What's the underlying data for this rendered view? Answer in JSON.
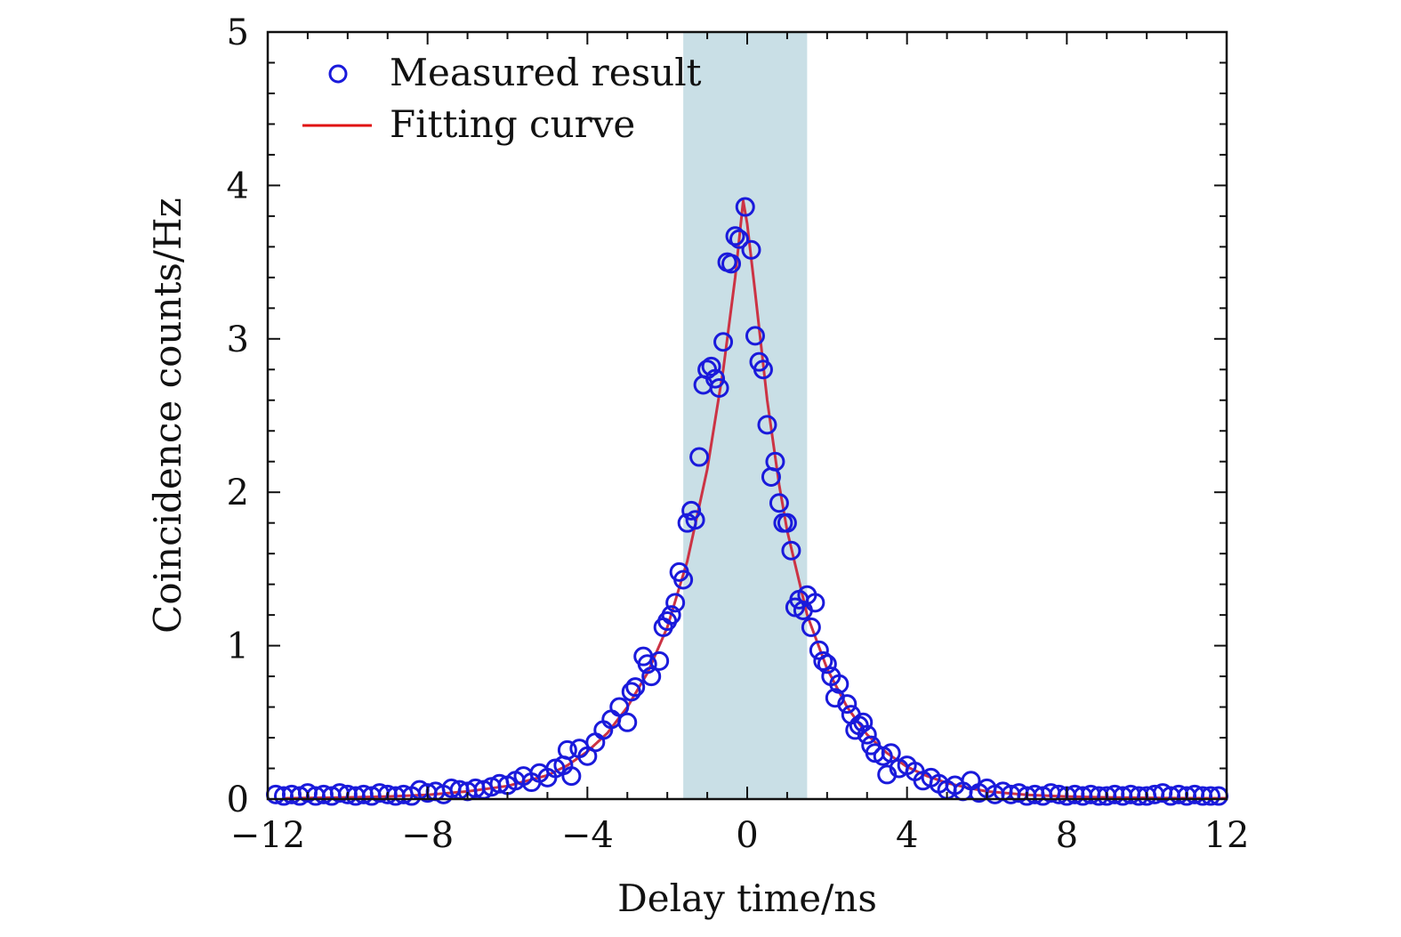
{
  "chart_data": {
    "type": "scatter",
    "xlabel": "Delay time/ns",
    "ylabel": "Coincidence counts/Hz",
    "xlim": [
      -12,
      12
    ],
    "ylim": [
      0,
      5
    ],
    "x_ticks": [
      -12,
      -8,
      -4,
      0,
      4,
      8,
      12
    ],
    "x_tick_labels": [
      "−12",
      "−8",
      "−4",
      "0",
      "4",
      "8",
      "12"
    ],
    "y_ticks": [
      0,
      1,
      2,
      3,
      4,
      5
    ],
    "y_tick_labels": [
      "0",
      "1",
      "2",
      "3",
      "4",
      "5"
    ],
    "grid": false,
    "legend_position": "top-left",
    "highlight_band": {
      "x": [
        -1.6,
        1.5
      ],
      "color": "#c9dfe6"
    },
    "colors": {
      "measured": "#1a1adb",
      "fit": "#cc3344",
      "fit_legend": "#e01010"
    },
    "series": [
      {
        "name": "Measured result",
        "kind": "scatter",
        "points": [
          [
            -11.8,
            0.03
          ],
          [
            -11.6,
            0.02
          ],
          [
            -11.4,
            0.03
          ],
          [
            -11.2,
            0.02
          ],
          [
            -11.0,
            0.04
          ],
          [
            -10.8,
            0.02
          ],
          [
            -10.6,
            0.03
          ],
          [
            -10.4,
            0.02
          ],
          [
            -10.2,
            0.04
          ],
          [
            -10.0,
            0.03
          ],
          [
            -9.8,
            0.02
          ],
          [
            -9.6,
            0.03
          ],
          [
            -9.4,
            0.02
          ],
          [
            -9.2,
            0.04
          ],
          [
            -9.0,
            0.03
          ],
          [
            -8.8,
            0.02
          ],
          [
            -8.6,
            0.03
          ],
          [
            -8.4,
            0.02
          ],
          [
            -8.2,
            0.06
          ],
          [
            -8.0,
            0.04
          ],
          [
            -7.8,
            0.05
          ],
          [
            -7.6,
            0.03
          ],
          [
            -7.4,
            0.07
          ],
          [
            -7.2,
            0.06
          ],
          [
            -7.0,
            0.05
          ],
          [
            -6.8,
            0.07
          ],
          [
            -6.6,
            0.06
          ],
          [
            -6.4,
            0.08
          ],
          [
            -6.2,
            0.1
          ],
          [
            -6.0,
            0.09
          ],
          [
            -5.8,
            0.12
          ],
          [
            -5.6,
            0.15
          ],
          [
            -5.4,
            0.11
          ],
          [
            -5.2,
            0.17
          ],
          [
            -5.0,
            0.14
          ],
          [
            -4.8,
            0.2
          ],
          [
            -4.6,
            0.22
          ],
          [
            -4.5,
            0.32
          ],
          [
            -4.4,
            0.15
          ],
          [
            -4.2,
            0.33
          ],
          [
            -4.0,
            0.28
          ],
          [
            -3.8,
            0.37
          ],
          [
            -3.6,
            0.45
          ],
          [
            -3.4,
            0.52
          ],
          [
            -3.2,
            0.6
          ],
          [
            -3.0,
            0.5
          ],
          [
            -2.9,
            0.7
          ],
          [
            -2.8,
            0.73
          ],
          [
            -2.6,
            0.93
          ],
          [
            -2.5,
            0.88
          ],
          [
            -2.4,
            0.8
          ],
          [
            -2.2,
            0.9
          ],
          [
            -2.1,
            1.12
          ],
          [
            -2.0,
            1.16
          ],
          [
            -1.9,
            1.2
          ],
          [
            -1.8,
            1.28
          ],
          [
            -1.7,
            1.48
          ],
          [
            -1.6,
            1.43
          ],
          [
            -1.5,
            1.8
          ],
          [
            -1.4,
            1.88
          ],
          [
            -1.3,
            1.82
          ],
          [
            -1.2,
            2.23
          ],
          [
            -1.1,
            2.7
          ],
          [
            -1.0,
            2.8
          ],
          [
            -0.9,
            2.82
          ],
          [
            -0.8,
            2.74
          ],
          [
            -0.7,
            2.68
          ],
          [
            -0.6,
            2.98
          ],
          [
            -0.5,
            3.5
          ],
          [
            -0.4,
            3.49
          ],
          [
            -0.3,
            3.67
          ],
          [
            -0.2,
            3.65
          ],
          [
            -0.05,
            3.86
          ],
          [
            0.1,
            3.58
          ],
          [
            0.2,
            3.02
          ],
          [
            0.3,
            2.85
          ],
          [
            0.4,
            2.8
          ],
          [
            0.5,
            2.44
          ],
          [
            0.6,
            2.1
          ],
          [
            0.7,
            2.2
          ],
          [
            0.8,
            1.93
          ],
          [
            0.9,
            1.8
          ],
          [
            1.0,
            1.8
          ],
          [
            1.1,
            1.62
          ],
          [
            1.2,
            1.25
          ],
          [
            1.3,
            1.3
          ],
          [
            1.4,
            1.23
          ],
          [
            1.5,
            1.33
          ],
          [
            1.6,
            1.12
          ],
          [
            1.7,
            1.28
          ],
          [
            1.8,
            0.97
          ],
          [
            1.9,
            0.9
          ],
          [
            2.0,
            0.88
          ],
          [
            2.1,
            0.8
          ],
          [
            2.2,
            0.66
          ],
          [
            2.3,
            0.75
          ],
          [
            2.5,
            0.62
          ],
          [
            2.6,
            0.55
          ],
          [
            2.7,
            0.45
          ],
          [
            2.8,
            0.48
          ],
          [
            2.9,
            0.5
          ],
          [
            3.0,
            0.42
          ],
          [
            3.1,
            0.35
          ],
          [
            3.2,
            0.3
          ],
          [
            3.4,
            0.28
          ],
          [
            3.5,
            0.16
          ],
          [
            3.6,
            0.3
          ],
          [
            3.8,
            0.2
          ],
          [
            4.0,
            0.22
          ],
          [
            4.2,
            0.18
          ],
          [
            4.4,
            0.12
          ],
          [
            4.6,
            0.14
          ],
          [
            4.8,
            0.1
          ],
          [
            5.0,
            0.06
          ],
          [
            5.2,
            0.09
          ],
          [
            5.4,
            0.05
          ],
          [
            5.6,
            0.12
          ],
          [
            5.8,
            0.04
          ],
          [
            6.0,
            0.07
          ],
          [
            6.2,
            0.03
          ],
          [
            6.4,
            0.05
          ],
          [
            6.6,
            0.03
          ],
          [
            6.8,
            0.04
          ],
          [
            7.0,
            0.02
          ],
          [
            7.2,
            0.03
          ],
          [
            7.4,
            0.02
          ],
          [
            7.6,
            0.04
          ],
          [
            7.8,
            0.03
          ],
          [
            8.0,
            0.02
          ],
          [
            8.2,
            0.03
          ],
          [
            8.4,
            0.02
          ],
          [
            8.6,
            0.03
          ],
          [
            8.8,
            0.02
          ],
          [
            9.0,
            0.02
          ],
          [
            9.2,
            0.03
          ],
          [
            9.4,
            0.02
          ],
          [
            9.6,
            0.03
          ],
          [
            9.8,
            0.02
          ],
          [
            10.0,
            0.02
          ],
          [
            10.2,
            0.03
          ],
          [
            10.4,
            0.04
          ],
          [
            10.6,
            0.02
          ],
          [
            10.8,
            0.03
          ],
          [
            11.0,
            0.02
          ],
          [
            11.2,
            0.03
          ],
          [
            11.4,
            0.02
          ],
          [
            11.6,
            0.02
          ],
          [
            11.8,
            0.02
          ]
        ]
      },
      {
        "name": "Fitting curve",
        "kind": "line",
        "points": [
          [
            -11.6,
            0.005
          ],
          [
            -11.0,
            0.007
          ],
          [
            -10.0,
            0.011
          ],
          [
            -9.0,
            0.017
          ],
          [
            -8.0,
            0.027
          ],
          [
            -7.0,
            0.05
          ],
          [
            -6.0,
            0.085
          ],
          [
            -5.0,
            0.155
          ],
          [
            -4.5,
            0.22
          ],
          [
            -4.0,
            0.31
          ],
          [
            -3.5,
            0.43
          ],
          [
            -3.0,
            0.6
          ],
          [
            -2.5,
            0.82
          ],
          [
            -2.0,
            1.12
          ],
          [
            -1.5,
            1.55
          ],
          [
            -1.0,
            2.15
          ],
          [
            -0.6,
            2.8
          ],
          [
            -0.3,
            3.4
          ],
          [
            -0.1,
            3.9
          ],
          [
            0.0,
            3.75
          ],
          [
            0.2,
            3.3
          ],
          [
            0.5,
            2.6
          ],
          [
            0.8,
            2.05
          ],
          [
            1.0,
            1.75
          ],
          [
            1.5,
            1.2
          ],
          [
            2.0,
            0.85
          ],
          [
            2.5,
            0.6
          ],
          [
            3.0,
            0.42
          ],
          [
            3.5,
            0.3
          ],
          [
            4.0,
            0.21
          ],
          [
            4.5,
            0.15
          ],
          [
            5.0,
            0.105
          ],
          [
            5.5,
            0.075
          ],
          [
            6.0,
            0.05
          ],
          [
            7.0,
            0.028
          ],
          [
            8.0,
            0.017
          ],
          [
            9.0,
            0.011
          ],
          [
            10.0,
            0.008
          ],
          [
            11.0,
            0.006
          ],
          [
            12.0,
            0.005
          ]
        ]
      }
    ]
  }
}
